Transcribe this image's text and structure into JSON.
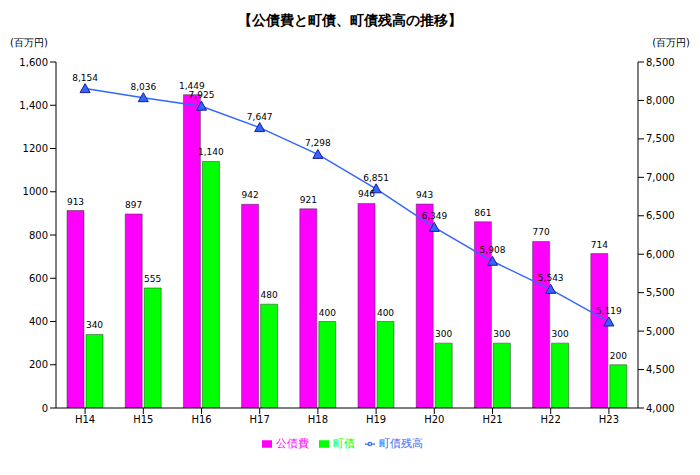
{
  "chart_data": {
    "type": "bar",
    "title": "【公債費と町債、町債残高の推移】",
    "y_label": "(百万円)",
    "y2_label": "(百万円)",
    "categories": [
      "H14",
      "H15",
      "H16",
      "H17",
      "H18",
      "H19",
      "H20",
      "H21",
      "H22",
      "H23"
    ],
    "series": [
      {
        "name": "公債費",
        "type": "bar",
        "color": "#ff00ff",
        "values": [
          913,
          897,
          1449,
          942,
          921,
          946,
          943,
          861,
          770,
          714
        ],
        "value_labels": [
          "913",
          "897",
          "1,449",
          "942",
          "921",
          "946",
          "943",
          "861",
          "770",
          "714"
        ]
      },
      {
        "name": "町債",
        "type": "bar",
        "color": "#00ff00",
        "values": [
          340,
          555,
          1140,
          480,
          400,
          400,
          300,
          300,
          300,
          200
        ],
        "value_labels": [
          "340",
          "555",
          "1,140",
          "480",
          "400",
          "400",
          "300",
          "300",
          "300",
          "200"
        ]
      },
      {
        "name": "町債残高",
        "type": "line",
        "axis": "y2",
        "color": "#3366ff",
        "marker": "triangle",
        "line_style": "solid",
        "values": [
          8154,
          8036,
          7925,
          7647,
          7298,
          6851,
          6349,
          5908,
          5543,
          5119
        ],
        "value_labels": [
          "8,154",
          "8,036",
          "7,925",
          "7,647",
          "7,298",
          "6,851",
          "6,349",
          "5,908",
          "5,543",
          "5,119"
        ]
      }
    ],
    "ylim": [
      0,
      1600
    ],
    "yticks": [
      0,
      200,
      400,
      600,
      800,
      1000,
      1200,
      {
        "value": 1400,
        "label": "1,400"
      },
      {
        "value": 1600,
        "label": "1,600"
      }
    ],
    "y2lim": [
      4000,
      8500
    ],
    "y2ticks": [
      {
        "value": 4000,
        "label": "4,000"
      },
      {
        "value": 4500,
        "label": "4,500"
      },
      {
        "value": 5000,
        "label": "5,000"
      },
      {
        "value": 5500,
        "label": "5,500"
      },
      {
        "value": 6000,
        "label": "6,000"
      },
      {
        "value": 6500,
        "label": "6,500"
      },
      {
        "value": 7000,
        "label": "7,000"
      },
      {
        "value": 7500,
        "label": "7,500"
      },
      {
        "value": 8000,
        "label": "8,000"
      },
      {
        "value": 8500,
        "label": "8,500"
      }
    ],
    "data_labels": true,
    "legend": "bottom",
    "grid": false
  }
}
